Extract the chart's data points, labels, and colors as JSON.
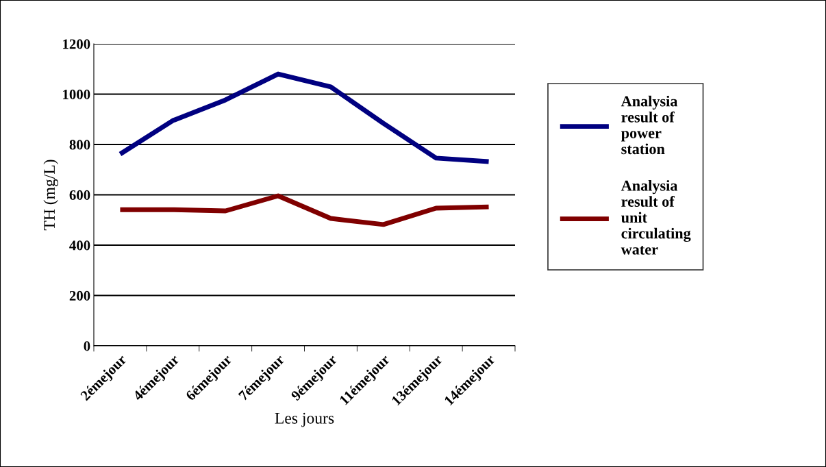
{
  "chart_data": {
    "type": "line",
    "xlabel": "Les jours",
    "ylabel": "TH (mg/L)",
    "categories": [
      "2émejour",
      "4émejour",
      "6émejour",
      "7émejour",
      "9émejour",
      "11émejour",
      "13émejour",
      "14émejour"
    ],
    "series": [
      {
        "name": "Analysia\nresult of\npower\nstation",
        "color": "#000080",
        "values": [
          762,
          895,
          977,
          1080,
          1029,
          884,
          746,
          732
        ]
      },
      {
        "name": "Analysia\nresult of\nunit\ncirculating\nwater",
        "color": "#800000",
        "values": [
          541,
          541,
          536,
          596,
          506,
          482,
          547,
          552
        ]
      }
    ],
    "ylim": [
      0,
      1200
    ],
    "yticks": [
      0,
      200,
      400,
      600,
      800,
      1000,
      1200
    ],
    "grid": "y",
    "legend": "right",
    "marker": "none",
    "line_style": "solid"
  }
}
